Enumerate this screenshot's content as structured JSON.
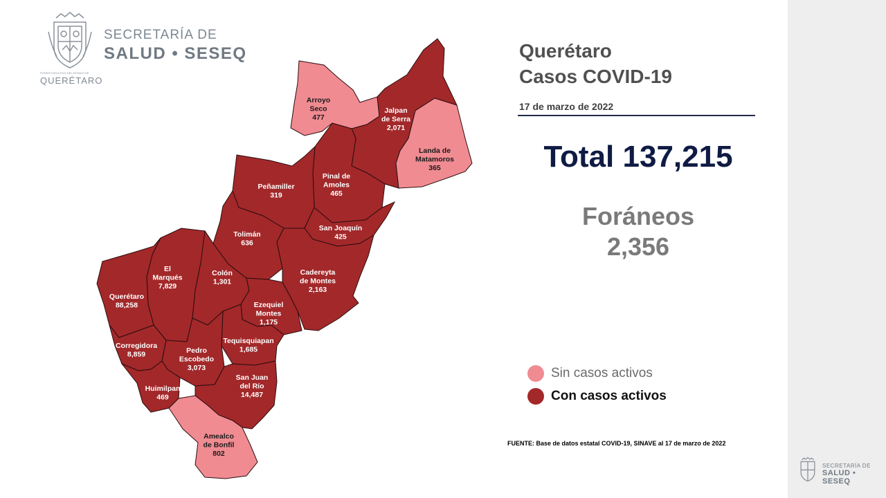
{
  "header": {
    "logo_line1": "SECRETARÍA DE",
    "logo_line2": "SALUD • SESEQ",
    "crest_caption": "PODER EJECUTIVO DEL ESTADO DE",
    "crest_state": "QUERÉTARO"
  },
  "summary": {
    "title_line1": "Querétaro",
    "title_line2": "Casos COVID-19",
    "date": "17 de marzo de 2022",
    "total": "Total 137,215",
    "foraneos_label": "Foráneos",
    "foraneos_value": "2,356"
  },
  "legend": {
    "inactive_label": "Sin casos activos",
    "active_label": "Con casos activos",
    "inactive_color": "#f08b92",
    "active_color": "#a3282a"
  },
  "source": "FUENTE: Base de datos estatal  COVID-19,  SINAVE  al 17 de marzo de 2022",
  "bottom_logo": {
    "line1": "SECRETARÍA DE",
    "line2": "SALUD • SESEQ"
  },
  "municipalities": [
    {
      "id": "arroyo-seco",
      "lines": [
        "Arroyo",
        "Seco",
        "477"
      ],
      "status": "inactive"
    },
    {
      "id": "jalpan",
      "lines": [
        "Jalpan",
        "de Serra",
        "2,071"
      ],
      "status": "active"
    },
    {
      "id": "landa",
      "lines": [
        "Landa de",
        "Matamoros",
        "365"
      ],
      "status": "inactive"
    },
    {
      "id": "pinal",
      "lines": [
        "Pinal de",
        "Amoles",
        "465"
      ],
      "status": "active"
    },
    {
      "id": "penamiller",
      "lines": [
        "Peñamiller",
        "319"
      ],
      "status": "active"
    },
    {
      "id": "san-joaquin",
      "lines": [
        "San Joaquín",
        "425"
      ],
      "status": "active"
    },
    {
      "id": "toliman",
      "lines": [
        "Tolimán",
        "636"
      ],
      "status": "active"
    },
    {
      "id": "cadereyta",
      "lines": [
        "Cadereyta",
        "de Montes",
        "2,163"
      ],
      "status": "active"
    },
    {
      "id": "el-marques",
      "lines": [
        "El",
        "Marqués",
        "7,829"
      ],
      "status": "active"
    },
    {
      "id": "colon",
      "lines": [
        "Colón",
        "1,301"
      ],
      "status": "active"
    },
    {
      "id": "queretaro",
      "lines": [
        "Querétaro",
        "88,258"
      ],
      "status": "active"
    },
    {
      "id": "ezequiel",
      "lines": [
        "Ezequiel",
        "Montes",
        "1,175"
      ],
      "status": "active"
    },
    {
      "id": "corregidora",
      "lines": [
        "Corregidora",
        "8,859"
      ],
      "status": "active"
    },
    {
      "id": "tequisquiapan",
      "lines": [
        "Tequisquiapan",
        "1,685"
      ],
      "status": "active"
    },
    {
      "id": "pedro-escobedo",
      "lines": [
        "Pedro",
        "Escobedo",
        "3,073"
      ],
      "status": "active"
    },
    {
      "id": "huimilpan",
      "lines": [
        "Huimilpan",
        "469"
      ],
      "status": "active"
    },
    {
      "id": "san-juan",
      "lines": [
        "San Juan",
        "del Río",
        "14,487"
      ],
      "status": "active"
    },
    {
      "id": "amealco",
      "lines": [
        "Amealco",
        "de Bonfil",
        "802"
      ],
      "status": "inactive"
    }
  ]
}
